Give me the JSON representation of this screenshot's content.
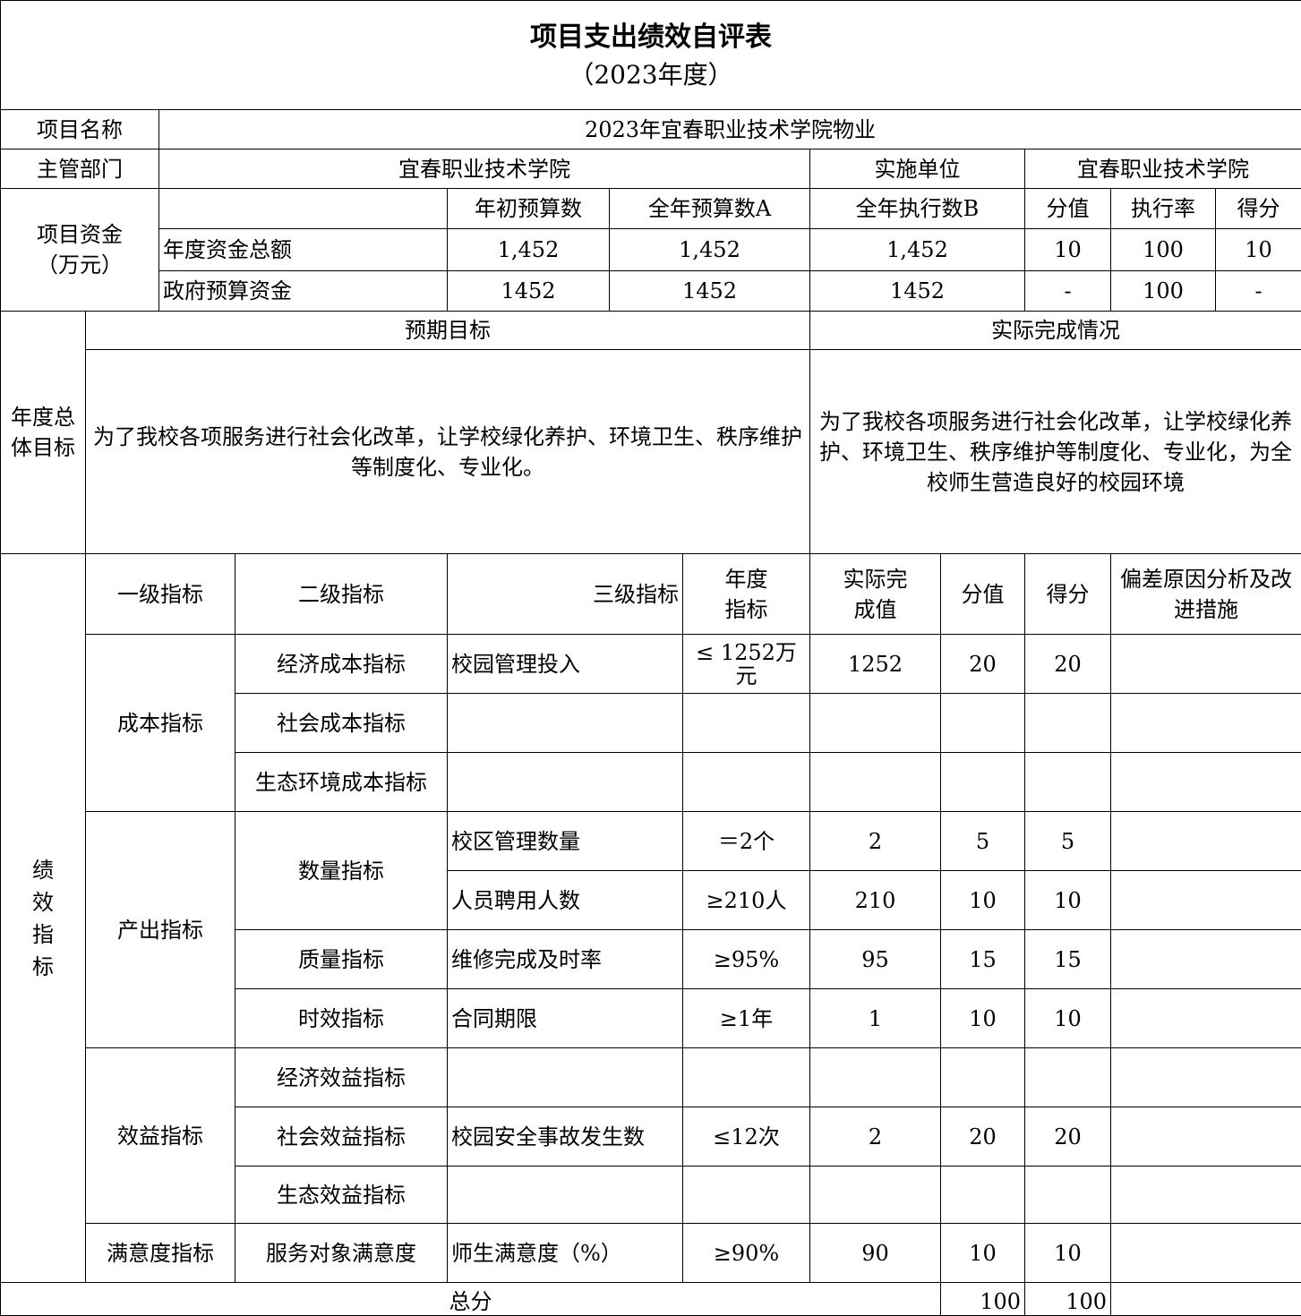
{
  "title": "项目支出绩效自评表",
  "subtitle": "（2023年度）",
  "project_name_label": "项目名称",
  "project_name": "2023年宜春职业技术学院物业",
  "dept_label": "主管部门",
  "dept": "宜春职业技术学院",
  "impl_label": "实施单位",
  "impl": "宜春职业技术学院",
  "funds": {
    "label": "项目资金（万元）",
    "label_line1": "项目资金",
    "label_line2": "（万元）",
    "headers": [
      "年初预算数",
      "全年预算数A",
      "全年执行数B",
      "分值",
      "执行率",
      "得分"
    ],
    "rows": [
      {
        "name": "年度资金总额",
        "values": [
          "1,452",
          "1,452",
          "1,452",
          "10",
          "100",
          "10"
        ]
      },
      {
        "name": "政府预算资金",
        "values": [
          "1452",
          "1452",
          "1452",
          "-",
          "100",
          "-"
        ]
      }
    ]
  },
  "goals": {
    "label": "年度总体目标",
    "expected_label": "预期目标",
    "actual_label": "实际完成情况",
    "expected": "为了我校各项服务进行社会化改革，让学校绿化养护、环境卫生、秩序维护等制度化、专业化。",
    "actual": "为了我校各项服务进行社会化改革，让学校绿化养护、环境卫生、秩序维护等制度化、专业化，为全校师生营造良好的校园环境"
  },
  "indicators": {
    "label": "绩效指标",
    "headers": [
      "一级指标",
      "二级指标",
      "三级指标",
      "年度指标",
      "实际完成值",
      "分值",
      "得分",
      "偏差原因分析及改进措施"
    ],
    "groups": [
      {
        "level1": "成本指标",
        "rows": [
          {
            "level2": "经济成本指标",
            "level3": "校园管理投入",
            "target": "≤ 1252万元",
            "actual": "1252",
            "score_value": "20",
            "score": "20",
            "note": ""
          },
          {
            "level2": "社会成本指标",
            "level3": "",
            "target": "",
            "actual": "",
            "score_value": "",
            "score": "",
            "note": ""
          },
          {
            "level2": "生态环境成本指标",
            "level3": "",
            "target": "",
            "actual": "",
            "score_value": "",
            "score": "",
            "note": ""
          }
        ]
      },
      {
        "level1": "产出指标",
        "rows": [
          {
            "level2": "数量指标",
            "level3": "校区管理数量",
            "target": "＝2个",
            "actual": "2",
            "score_value": "5",
            "score": "5",
            "note": ""
          },
          {
            "level2": "数量指标",
            "level3": "人员聘用人数",
            "target": "≥210人",
            "actual": "210",
            "score_value": "10",
            "score": "10",
            "note": ""
          },
          {
            "level2": "质量指标",
            "level3": "维修完成及时率",
            "target": "≥95%",
            "actual": "95",
            "score_value": "15",
            "score": "15",
            "note": ""
          },
          {
            "level2": "时效指标",
            "level3": "合同期限",
            "target": "≥1年",
            "actual": "1",
            "score_value": "10",
            "score": "10",
            "note": ""
          }
        ]
      },
      {
        "level1": "效益指标",
        "rows": [
          {
            "level2": "经济效益指标",
            "level3": "",
            "target": "",
            "actual": "",
            "score_value": "",
            "score": "",
            "note": ""
          },
          {
            "level2": "社会效益指标",
            "level3": "校园安全事故发生数",
            "target": "≤12次",
            "actual": "2",
            "score_value": "20",
            "score": "20",
            "note": ""
          },
          {
            "level2": "生态效益指标",
            "level3": "",
            "target": "",
            "actual": "",
            "score_value": "",
            "score": "",
            "note": ""
          }
        ]
      },
      {
        "level1": "满意度指标",
        "rows": [
          {
            "level2": "服务对象满意度",
            "level3": "师生满意度（%）",
            "target": "≥90%",
            "actual": "90",
            "score_value": "10",
            "score": "10",
            "note": ""
          }
        ]
      }
    ]
  },
  "total": {
    "label": "总分",
    "score_value": "100",
    "score": "100"
  }
}
